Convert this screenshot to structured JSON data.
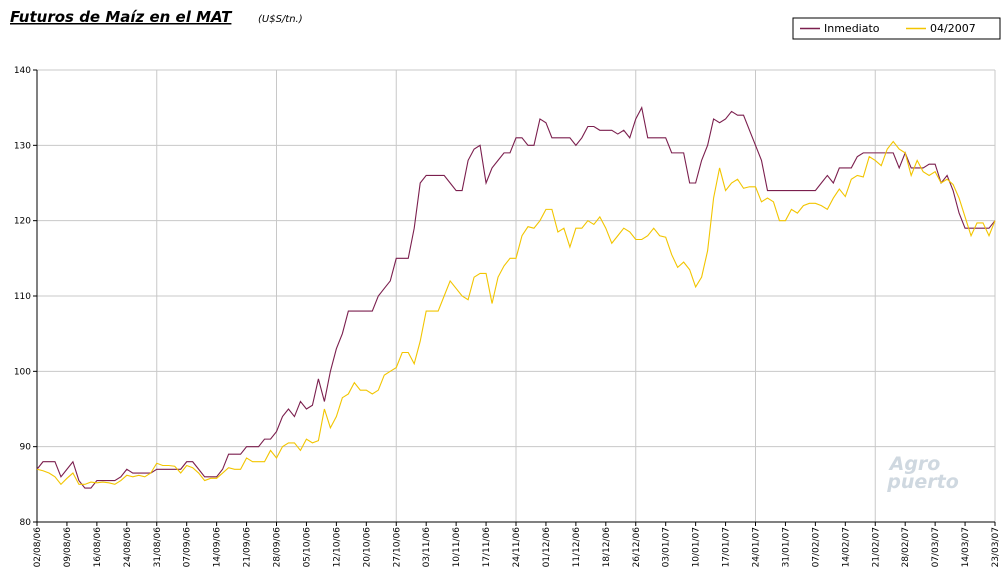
{
  "chart_data": {
    "type": "line",
    "title": "Futuros de Maíz en el MAT",
    "subtitle": "(U$S/tn.)",
    "watermark": [
      "Agro",
      "puerto"
    ],
    "categories": [
      "02/08/06",
      null,
      null,
      null,
      null,
      "09/08/06",
      null,
      null,
      null,
      null,
      "16/08/06",
      null,
      null,
      null,
      null,
      "24/08/06",
      null,
      null,
      null,
      null,
      "31/08/06",
      null,
      null,
      null,
      null,
      "07/09/06",
      null,
      null,
      null,
      null,
      "14/09/06",
      null,
      null,
      null,
      null,
      "21/09/06",
      null,
      null,
      null,
      null,
      "28/09/06",
      null,
      null,
      null,
      null,
      "05/10/06",
      null,
      null,
      null,
      null,
      "12/10/06",
      null,
      null,
      null,
      null,
      "20/10/06",
      null,
      null,
      null,
      null,
      "27/10/06",
      null,
      null,
      null,
      null,
      "03/11/06",
      null,
      null,
      null,
      null,
      "10/11/06",
      null,
      null,
      null,
      null,
      "17/11/06",
      null,
      null,
      null,
      null,
      "24/11/06",
      null,
      null,
      null,
      null,
      "01/12/06",
      null,
      null,
      null,
      null,
      "11/12/06",
      null,
      null,
      null,
      null,
      "18/12/06",
      null,
      null,
      null,
      null,
      "26/12/06",
      null,
      null,
      null,
      null,
      "03/01/07",
      null,
      null,
      null,
      null,
      "10/01/07",
      null,
      null,
      null,
      null,
      "17/01/07",
      null,
      null,
      null,
      null,
      "24/01/07",
      null,
      null,
      null,
      null,
      "31/01/07",
      null,
      null,
      null,
      null,
      "07/02/07",
      null,
      null,
      null,
      null,
      "14/02/07",
      null,
      null,
      null,
      null,
      "21/02/07",
      null,
      null,
      null,
      null,
      "28/02/07",
      null,
      null,
      null,
      null,
      "07/03/07",
      null,
      null,
      null,
      null,
      "14/03/07",
      null,
      null,
      null,
      null,
      "23/03/07"
    ],
    "series": [
      {
        "name": "Inmediato",
        "color": "#7b1f4e",
        "values": [
          87,
          88,
          88,
          88,
          86,
          87,
          88,
          85.5,
          84.5,
          84.5,
          85.5,
          85.5,
          85.5,
          85.5,
          86,
          87,
          86.5,
          86.5,
          86.5,
          86.5,
          87,
          87,
          87,
          87,
          87,
          88,
          88,
          87,
          86,
          86,
          86,
          87,
          89,
          89,
          89,
          90,
          90,
          90,
          91,
          91,
          92,
          94,
          95,
          94,
          96,
          95,
          95.5,
          99,
          96,
          100,
          103,
          105,
          108,
          108,
          108,
          108,
          108,
          110,
          111,
          112,
          115,
          115,
          115,
          119,
          125,
          126,
          126,
          126,
          126,
          125,
          124,
          124,
          128,
          129.5,
          130,
          125,
          127,
          128,
          129,
          129,
          131,
          131,
          130,
          130,
          133.5,
          133,
          131,
          131,
          131,
          131,
          130,
          131,
          132.5,
          132.5,
          132,
          132,
          132,
          131.5,
          132,
          131,
          133.5,
          135,
          131,
          131,
          131,
          131,
          129,
          129,
          129,
          125,
          125,
          128,
          130,
          133.5,
          133,
          133.5,
          134.5,
          134,
          134,
          132,
          130,
          128,
          124,
          124,
          124,
          124,
          124,
          124,
          124,
          124,
          124,
          125,
          126,
          125,
          127,
          127,
          127,
          128.5,
          129,
          129,
          129,
          129,
          129,
          129,
          127,
          129,
          127,
          127,
          127,
          127.5,
          127.5,
          125,
          126,
          124,
          121,
          119,
          119,
          119,
          119,
          119,
          120
        ]
      },
      {
        "name": "04/2007",
        "color": "#f2c500",
        "values": [
          87,
          86.8,
          86.5,
          86,
          85,
          85.8,
          86.5,
          85,
          85,
          85.3,
          85.2,
          85.3,
          85.2,
          85,
          85.5,
          86.2,
          86,
          86.2,
          86,
          86.5,
          87.8,
          87.5,
          87.5,
          87.4,
          86.5,
          87.5,
          87.2,
          86.5,
          85.5,
          85.8,
          85.8,
          86.5,
          87.2,
          87,
          87,
          88.5,
          88,
          88,
          88,
          89.5,
          88.5,
          90,
          90.5,
          90.5,
          89.5,
          91,
          90.5,
          90.8,
          95,
          92.5,
          94,
          96.5,
          97,
          98.5,
          97.5,
          97.5,
          97,
          97.5,
          99.5,
          100,
          100.5,
          102.5,
          102.5,
          101,
          104,
          108,
          108,
          108,
          110,
          112,
          111,
          110,
          109.5,
          112.5,
          113,
          113,
          109,
          112.5,
          114,
          115,
          115,
          118,
          119.2,
          119,
          120,
          121.5,
          121.5,
          118.5,
          119,
          116.5,
          119,
          119,
          120,
          119.5,
          120.5,
          119,
          117,
          118,
          119,
          118.5,
          117.5,
          117.5,
          118,
          119,
          118,
          117.8,
          115.5,
          113.8,
          114.5,
          113.5,
          111.2,
          112.5,
          116,
          123,
          127,
          124,
          125,
          125.5,
          124.3,
          124.5,
          124.5,
          122.5,
          123,
          122.5,
          120,
          120,
          121.5,
          121,
          122,
          122.3,
          122.3,
          122,
          121.5,
          123,
          124.2,
          123.2,
          125.5,
          126,
          125.8,
          128.5,
          128,
          127.3,
          129.5,
          130.5,
          129.5,
          129,
          126,
          128,
          126.5,
          126,
          126.5,
          125,
          125.5,
          124.8,
          123,
          120.5,
          118,
          119.7,
          119.7,
          118,
          120
        ]
      }
    ],
    "ylim": [
      80,
      140
    ],
    "yticks": [
      80,
      90,
      100,
      110,
      120,
      130,
      140
    ],
    "grid": true,
    "legend": "top-right"
  }
}
